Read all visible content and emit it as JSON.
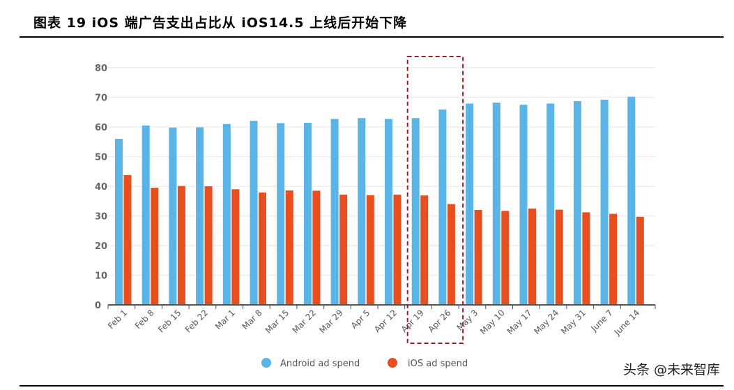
{
  "title": "图表 19 iOS 端广告支出占比从 iOS14.5 上线后开始下降",
  "watermark": "头条 @未来智库",
  "chart_data": {
    "type": "bar",
    "title": "",
    "xlabel": "",
    "ylabel": "",
    "ylim": [
      0,
      80
    ],
    "yticks": [
      0,
      10,
      20,
      30,
      40,
      50,
      60,
      70,
      80
    ],
    "grid": true,
    "legend_placement": "bottom",
    "categories": [
      "Feb 1",
      "Feb 8",
      "Feb 15",
      "Feb 22",
      "Mar 1",
      "Mar 8",
      "Mar 15",
      "Mar 22",
      "Mar 29",
      "Apr 5",
      "Apr 12",
      "Apr 19",
      "Apr 26",
      "May 3",
      "May 10",
      "May 17",
      "May 24",
      "May 31",
      "June 7",
      "June 14"
    ],
    "series": [
      {
        "name": "Android ad spend",
        "color": "#5ab4e5",
        "values": [
          56,
          60.5,
          59.8,
          59.9,
          61,
          62.1,
          61.3,
          61.4,
          62.7,
          63,
          62.7,
          63,
          65.9,
          67.9,
          68.2,
          67.5,
          67.9,
          68.7,
          69.2,
          70.2
        ]
      },
      {
        "name": "iOS ad spend",
        "color": "#e84e1e",
        "values": [
          43.8,
          39.5,
          40.1,
          40,
          39,
          37.9,
          38.6,
          38.5,
          37.2,
          37,
          37.2,
          36.9,
          34,
          32,
          31.7,
          32.5,
          32.1,
          31.2,
          30.7,
          29.7
        ]
      }
    ],
    "highlight": {
      "categories": [
        "Apr 19",
        "Apr 26"
      ],
      "style": "dashed box",
      "color": "#a01c24"
    }
  }
}
